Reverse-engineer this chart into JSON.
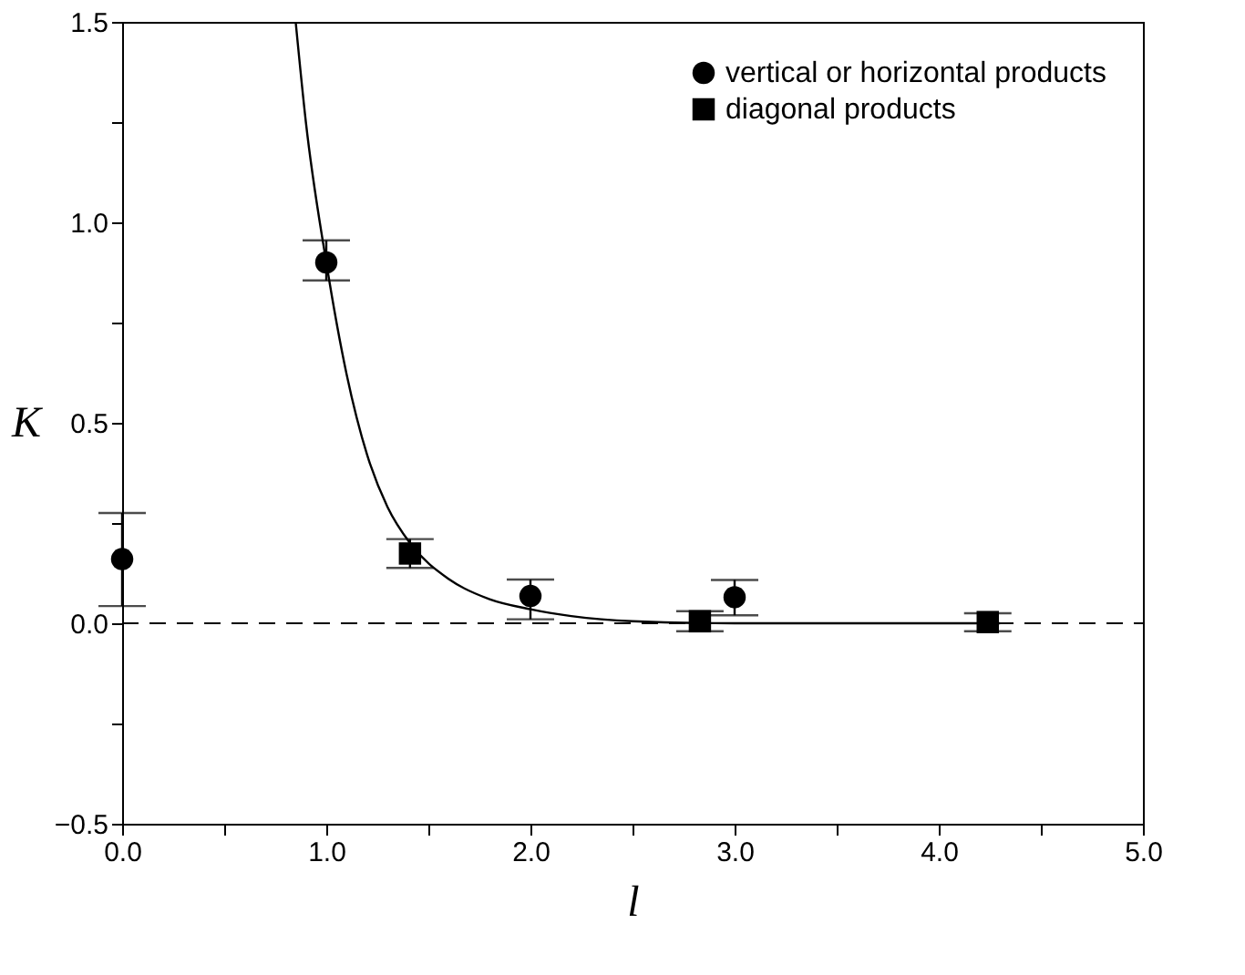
{
  "chart_data": {
    "type": "scatter",
    "xlabel": "l",
    "ylabel": "K",
    "xlim": [
      0.0,
      5.0
    ],
    "ylim": [
      -0.5,
      1.5
    ],
    "xticks": [
      {
        "value": 0,
        "label": "0.0"
      },
      {
        "value": 0.5,
        "label": null
      },
      {
        "value": 1,
        "label": "1.0"
      },
      {
        "value": 1.5,
        "label": null
      },
      {
        "value": 2,
        "label": "2.0"
      },
      {
        "value": 2.5,
        "label": null
      },
      {
        "value": 3,
        "label": "3.0"
      },
      {
        "value": 3.5,
        "label": null
      },
      {
        "value": 4,
        "label": "4.0"
      },
      {
        "value": 4.5,
        "label": null
      },
      {
        "value": 5,
        "label": "5.0"
      }
    ],
    "yticks": [
      {
        "value": -0.5,
        "label": "−0.5"
      },
      {
        "value": -0.25,
        "label": null
      },
      {
        "value": 0,
        "label": "0.0"
      },
      {
        "value": 0.25,
        "label": null
      },
      {
        "value": 0.5,
        "label": "0.5"
      },
      {
        "value": 0.75,
        "label": null
      },
      {
        "value": 1,
        "label": "1.0"
      },
      {
        "value": 1.25,
        "label": null
      },
      {
        "value": 1.5,
        "label": "1.5"
      }
    ],
    "series": [
      {
        "name": "vertical or horizontal products",
        "marker": "circle",
        "color": "#000000",
        "x": [
          0,
          1,
          2,
          3
        ],
        "values": [
          0.16,
          0.9,
          0.068,
          0.065
        ],
        "errors": [
          [
            0.043,
            0.275
          ],
          [
            0.855,
            0.955
          ],
          [
            0.01,
            0.109
          ],
          [
            0.02,
            0.108
          ]
        ]
      },
      {
        "name": "diagonal products",
        "marker": "square",
        "color": "#000000",
        "x": [
          1.41,
          2.83,
          4.24
        ],
        "values": [
          0.174,
          0.005,
          0.003
        ],
        "errors": [
          [
            0.138,
            0.21
          ],
          [
            -0.02,
            0.03
          ],
          [
            -0.02,
            0.025
          ]
        ]
      },
      {
        "type": "line",
        "line_style": "solid",
        "color": "#000000",
        "x": [
          0.85,
          0.9,
          1.0,
          1.1,
          1.2,
          1.3,
          1.41,
          1.6,
          1.8,
          2.0,
          2.2,
          2.5,
          3.0,
          4.0,
          4.3
        ],
        "values": [
          1.5,
          1.25,
          0.9,
          0.62,
          0.42,
          0.29,
          0.2,
          0.11,
          0.06,
          0.035,
          0.018,
          0.005,
          0.0,
          0.0,
          0.0
        ]
      }
    ],
    "ref_lines": [
      {
        "axis": "y",
        "value": 0,
        "line_style": "dashed",
        "color": "#000000"
      }
    ],
    "legend": "top right",
    "grid": false
  }
}
